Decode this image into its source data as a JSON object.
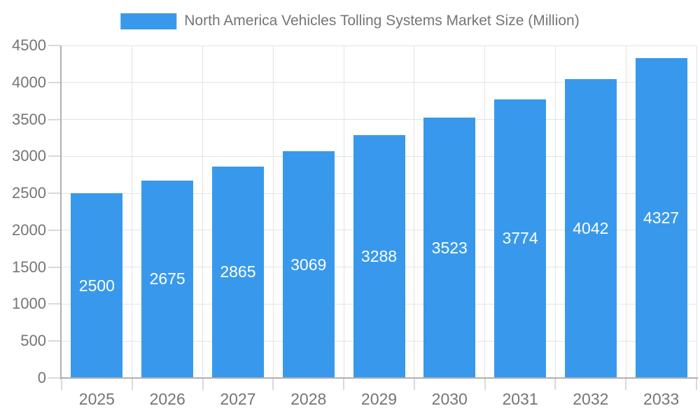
{
  "chart_data": {
    "type": "bar",
    "title": "North America Vehicles Tolling Systems Market Size (Million)",
    "categories": [
      "2025",
      "2026",
      "2027",
      "2028",
      "2029",
      "2030",
      "2031",
      "2032",
      "2033"
    ],
    "series": [
      {
        "name": "North America Vehicles Tolling Systems Market Size (Million)",
        "values": [
          2500,
          2675,
          2865,
          3069,
          3288,
          3523,
          3774,
          4042,
          4327
        ]
      }
    ],
    "value_labels": [
      "2500",
      "2675",
      "2865",
      "3069",
      "3288",
      "3523",
      "3774",
      "4042",
      "4327"
    ],
    "yticks": [
      0,
      500,
      1000,
      1500,
      2000,
      2500,
      3000,
      3500,
      4000,
      4500
    ],
    "ylim": [
      0,
      4500
    ],
    "xlabel": "",
    "ylabel": "",
    "grid": true,
    "legend_position": "top-center",
    "value_label_position": "inside-center",
    "colors": {
      "bar": "#3899ec",
      "value_label_text": "#ffffff",
      "axis_text": "#757575",
      "legend_text": "#757575",
      "axis_line": "#b0b0b0",
      "tick": "#d9d9d9",
      "gridline": "#e3e3e3",
      "background": "#ffffff"
    }
  }
}
